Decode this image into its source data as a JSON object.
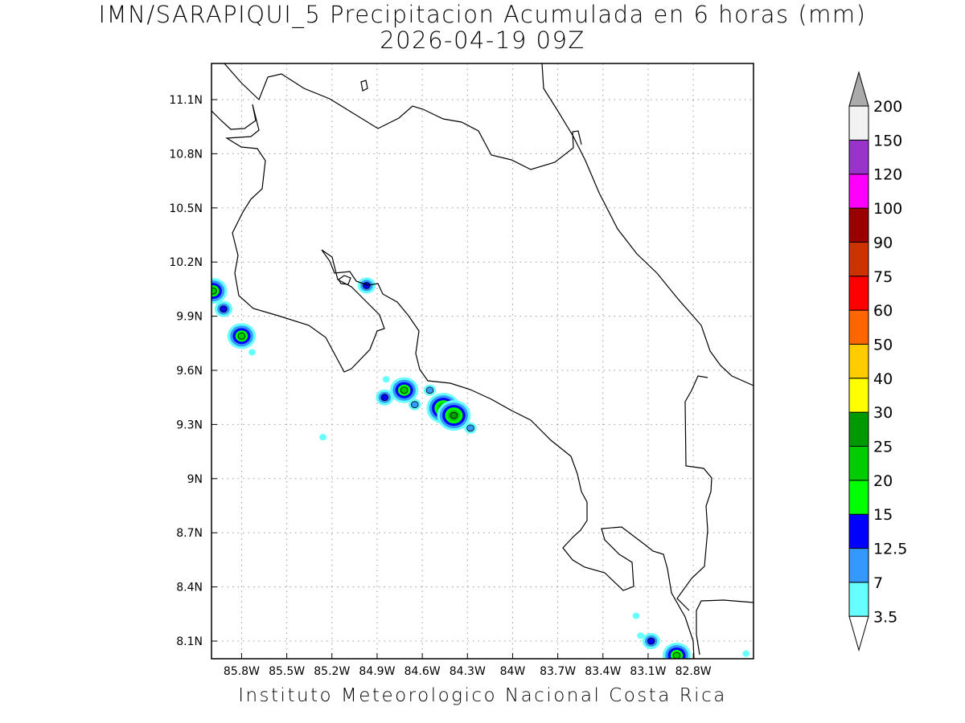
{
  "title": {
    "line1": "IMN/SARAPIQUI_5 Precipitacion Acumulada en 6 horas (mm)",
    "line2": "2026-04-19 09Z"
  },
  "footer": "Instituto Meteorologico Nacional Costa Rica",
  "map": {
    "lat_ticks": [
      "11.1N",
      "10.8N",
      "10.5N",
      "10.2N",
      "9.9N",
      "9.6N",
      "9.3N",
      "9N",
      "8.7N",
      "8.4N",
      "8.1N"
    ],
    "lon_ticks": [
      "85.8W",
      "85.5W",
      "85.2W",
      "84.9W",
      "84.6W",
      "84.3W",
      "84W",
      "83.7W",
      "83.4W",
      "83.1W",
      "82.8W"
    ],
    "gridlines": true,
    "coastline_color": "#000000",
    "precip_cells": [
      {
        "lon": -85.99,
        "lat": 10.04,
        "mm": 20
      },
      {
        "lon": -85.92,
        "lat": 9.94,
        "mm": 12.5
      },
      {
        "lon": -85.8,
        "lat": 9.79,
        "mm": 20
      },
      {
        "lon": -85.73,
        "lat": 9.7,
        "mm": 3.5
      },
      {
        "lon": -84.97,
        "lat": 10.07,
        "mm": 12.5
      },
      {
        "lon": -84.85,
        "lat": 9.45,
        "mm": 12.5
      },
      {
        "lon": -84.84,
        "lat": 9.55,
        "mm": 3.5
      },
      {
        "lon": -84.72,
        "lat": 9.49,
        "mm": 20
      },
      {
        "lon": -84.65,
        "lat": 9.41,
        "mm": 7
      },
      {
        "lon": -84.55,
        "lat": 9.49,
        "mm": 7
      },
      {
        "lon": -84.52,
        "lat": 9.38,
        "mm": 7
      },
      {
        "lon": -84.46,
        "lat": 9.39,
        "mm": 25
      },
      {
        "lon": -84.39,
        "lat": 9.35,
        "mm": 25
      },
      {
        "lon": -84.28,
        "lat": 9.28,
        "mm": 7
      },
      {
        "lon": -85.26,
        "lat": 9.23,
        "mm": 3.5
      },
      {
        "lon": -83.15,
        "lat": 8.13,
        "mm": 3.5
      },
      {
        "lon": -83.18,
        "lat": 8.24,
        "mm": 3.5
      },
      {
        "lon": -83.08,
        "lat": 8.1,
        "mm": 12.5
      },
      {
        "lon": -82.91,
        "lat": 8.02,
        "mm": 20
      },
      {
        "lon": -82.45,
        "lat": 8.03,
        "mm": 3.5
      }
    ]
  },
  "colorbar": {
    "labels": [
      "3.5",
      "7",
      "12.5",
      "15",
      "20",
      "25",
      "30",
      "40",
      "50",
      "60",
      "75",
      "90",
      "100",
      "120",
      "150",
      "200"
    ],
    "colors": [
      "#66ffff",
      "#3399ff",
      "#0000ff",
      "#00ff00",
      "#00cc00",
      "#009900",
      "#ffff00",
      "#ffcc00",
      "#ff6600",
      "#ff0000",
      "#cc3300",
      "#990000",
      "#ff00ff",
      "#9933cc",
      "#f2f2f2",
      "#aaaaaa"
    ]
  }
}
